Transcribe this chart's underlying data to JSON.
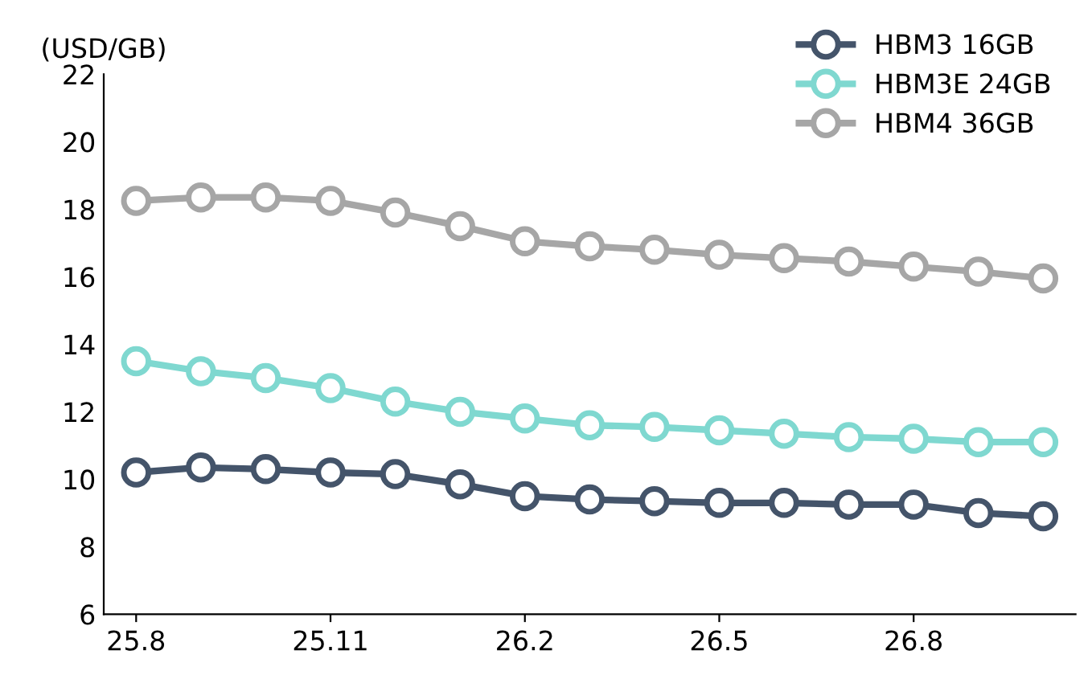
{
  "chart_data": {
    "type": "line",
    "ylabel": "(USD/GB)",
    "categories": [
      "25.8",
      null,
      null,
      "25.11",
      null,
      null,
      "26.2",
      null,
      null,
      "26.5",
      null,
      null,
      "26.8",
      null,
      null
    ],
    "series": [
      {
        "name": "HBM3 16GB",
        "color": "#44546a",
        "values": [
          10.2,
          10.35,
          10.3,
          10.2,
          10.15,
          9.85,
          9.5,
          9.4,
          9.35,
          9.3,
          9.3,
          9.25,
          9.25,
          9.0,
          8.9
        ]
      },
      {
        "name": "HBM3E 24GB",
        "color": "#7fd8d0",
        "values": [
          13.5,
          13.2,
          13.0,
          12.7,
          12.3,
          12.0,
          11.8,
          11.6,
          11.55,
          11.45,
          11.35,
          11.25,
          11.2,
          11.1,
          11.1
        ]
      },
      {
        "name": "HBM4 36GB",
        "color": "#a6a6a6",
        "values": [
          18.25,
          18.35,
          18.35,
          18.25,
          17.9,
          17.5,
          17.05,
          16.9,
          16.8,
          16.65,
          16.55,
          16.45,
          16.3,
          16.15,
          15.95
        ]
      }
    ],
    "ylim": [
      6,
      22
    ],
    "yticks": [
      6,
      8,
      10,
      12,
      14,
      16,
      18,
      20,
      22
    ],
    "legend": "top right",
    "marker": "circle",
    "line_style": "solid",
    "grid": false
  }
}
